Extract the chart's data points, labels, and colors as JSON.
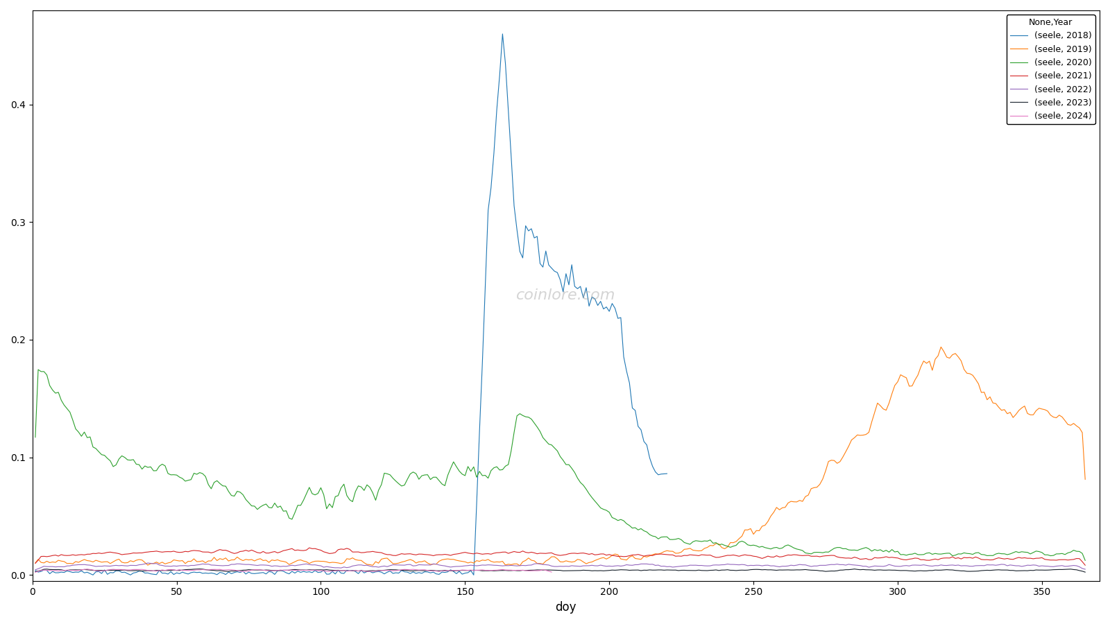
{
  "title": "",
  "xlabel": "doy",
  "ylabel": "",
  "xlim": [
    0,
    370
  ],
  "ylim": [
    -0.005,
    0.48
  ],
  "watermark": "coinlore.com",
  "legend_title": "None,Year",
  "series": [
    {
      "label": "(seele, 2018)",
      "color": "#1f77b4"
    },
    {
      "label": "(seele, 2019)",
      "color": "#ff7f0e"
    },
    {
      "label": "(seele, 2020)",
      "color": "#2ca02c"
    },
    {
      "label": "(seele, 2021)",
      "color": "#d62728"
    },
    {
      "label": "(seele, 2022)",
      "color": "#9467bd"
    },
    {
      "label": "(seele, 2023)",
      "color": "#17202a"
    },
    {
      "label": "(seele, 2024)",
      "color": "#e377c2"
    }
  ],
  "figsize": [
    16.0,
    9.0
  ],
  "dpi": 100
}
